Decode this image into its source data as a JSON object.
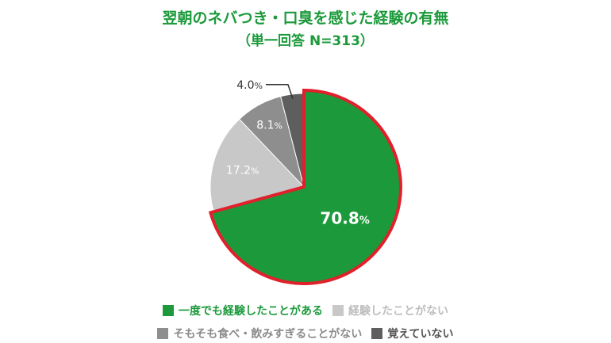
{
  "header": {
    "title": "翌朝のネバつき・口臭を感じた経験の有無",
    "subtitle": "（単一回答 N=313）"
  },
  "chart_data": {
    "type": "pie",
    "title": "翌朝のネバつき・口臭を感じた経験の有無",
    "subtitle": "（単一回答 N=313）",
    "unit": "%",
    "slices": [
      {
        "name": "一度でも経験したことがある",
        "value": 70.8,
        "label": "70.8",
        "color": "#1c9a3b",
        "highlight": true
      },
      {
        "name": "経験したことがない",
        "value": 17.2,
        "label": "17.2",
        "color": "#c8c8c8"
      },
      {
        "name": "そもそも食べ・飲みすぎることがない",
        "value": 8.1,
        "label": "8.1",
        "color": "#8e8e8e"
      },
      {
        "name": "覚えていない",
        "value": 4.0,
        "label": "4.0",
        "color": "#5e5e5e"
      }
    ],
    "highlight_outline_color": "#e0202a",
    "legend": "bottom"
  },
  "legend": {
    "row1": [
      {
        "label": "一度でも経験したことがある",
        "color": "#1c9a3b",
        "text_color": "#1c9a3b"
      },
      {
        "label": "経験したことがない",
        "color": "#c8c8c8",
        "text_color": "#bdbdbd"
      }
    ],
    "row2": [
      {
        "label": "そもそも食べ・飲みすぎることがない",
        "color": "#8e8e8e",
        "text_color": "#8a8a8a"
      },
      {
        "label": "覚えていない",
        "color": "#5e5e5e",
        "text_color": "#555555"
      }
    ]
  }
}
